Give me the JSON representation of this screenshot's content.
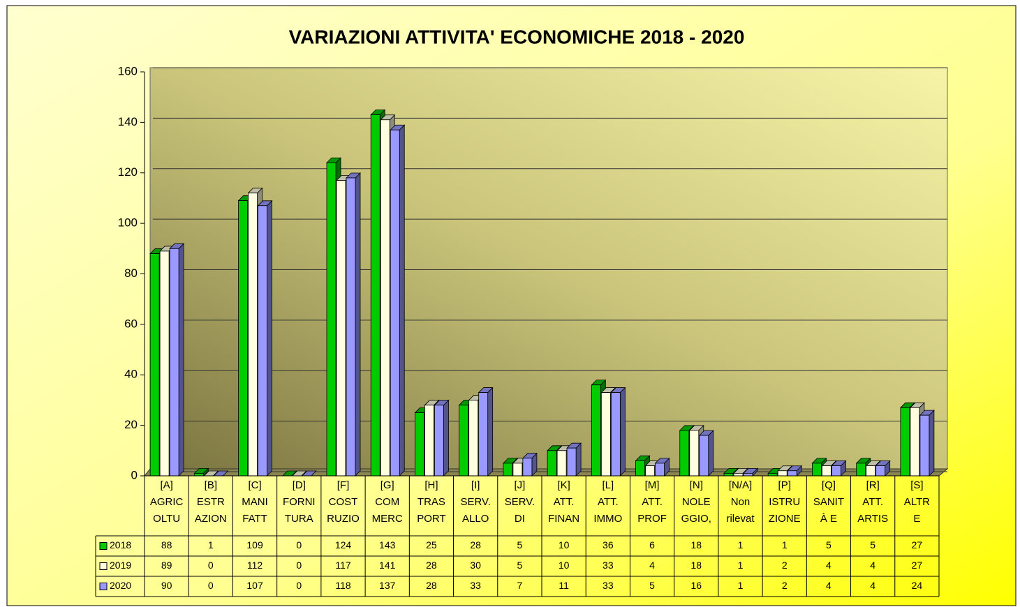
{
  "chart_data": {
    "type": "bar3d",
    "title": "VARIAZIONI ATTIVITA' ECONOMICHE 2018 - 2020",
    "categories": [
      [
        "[A]",
        "AGRIC",
        "OLTU"
      ],
      [
        "[B]",
        "ESTR",
        "AZION"
      ],
      [
        "[C]",
        "MANI",
        "FATT"
      ],
      [
        "[D]",
        "FORNI",
        "TURA"
      ],
      [
        "[F]",
        "COST",
        "RUZIO"
      ],
      [
        "[G]",
        "COM",
        "MERC"
      ],
      [
        "[H]",
        "TRAS",
        "PORT"
      ],
      [
        "[I]",
        "SERV.",
        "ALLO"
      ],
      [
        "[J]",
        "SERV.",
        "DI"
      ],
      [
        "[K]",
        "ATT.",
        "FINAN"
      ],
      [
        "[L]",
        "ATT.",
        "IMMO"
      ],
      [
        "[M]",
        "ATT.",
        "PROF"
      ],
      [
        "[N]",
        "NOLE",
        "GGIO,"
      ],
      [
        "[N/A]",
        "Non",
        "rilevat"
      ],
      [
        "[P]",
        "ISTRU",
        "ZIONE"
      ],
      [
        "[Q]",
        "SANIT",
        "À E"
      ],
      [
        "[R]",
        "ATT.",
        "ARTIS"
      ],
      [
        "[S]",
        "ALTR",
        "E"
      ]
    ],
    "series": [
      {
        "name": "2018",
        "color": "#00cc00",
        "values": [
          88,
          1,
          109,
          0,
          124,
          143,
          25,
          28,
          5,
          10,
          36,
          6,
          18,
          1,
          1,
          5,
          5,
          27
        ]
      },
      {
        "name": "2019",
        "color": "#ffffe0",
        "values": [
          89,
          0,
          112,
          0,
          117,
          141,
          28,
          30,
          5,
          10,
          33,
          4,
          18,
          1,
          2,
          4,
          4,
          27
        ]
      },
      {
        "name": "2020",
        "color": "#9999ff",
        "values": [
          90,
          0,
          107,
          0,
          118,
          137,
          28,
          33,
          7,
          11,
          33,
          5,
          16,
          1,
          2,
          4,
          4,
          24
        ]
      }
    ],
    "ylim": [
      0,
      160
    ],
    "yticks": [
      0,
      20,
      40,
      60,
      80,
      100,
      120,
      140,
      160
    ],
    "grid": true
  }
}
